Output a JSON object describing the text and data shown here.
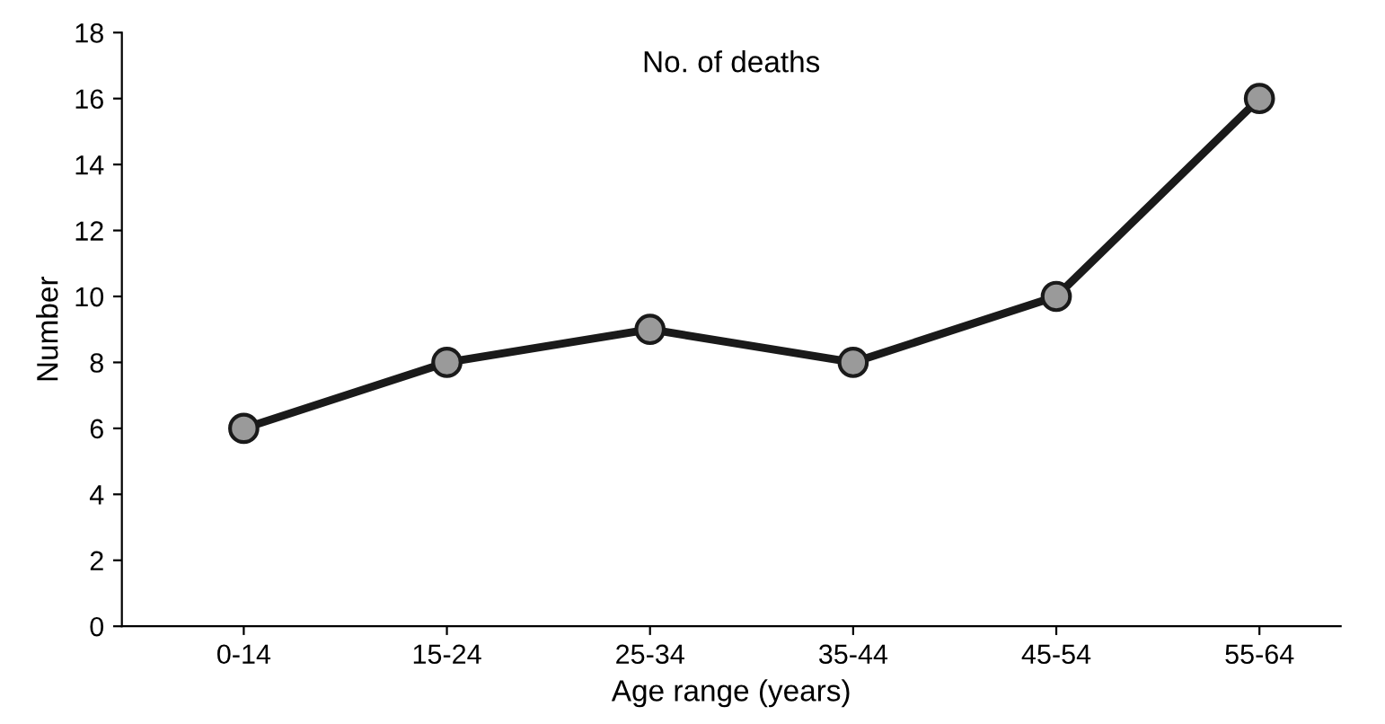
{
  "chart_data": {
    "type": "line",
    "title": "No. of deaths",
    "xlabel": "Age range (years)",
    "ylabel": "Number",
    "categories": [
      "0-14",
      "15-24",
      "25-34",
      "35-44",
      "45-54",
      "55-64"
    ],
    "series": [
      {
        "color": "#1a1a1a",
        "values": [
          6,
          8,
          9,
          8,
          10,
          16
        ]
      }
    ],
    "ylim": [
      0,
      18
    ],
    "yticks": [
      0,
      2,
      4,
      6,
      8,
      10,
      12,
      14,
      16,
      18
    ],
    "grid": false,
    "legend": false,
    "marker": "circle",
    "line_style": "solid"
  }
}
